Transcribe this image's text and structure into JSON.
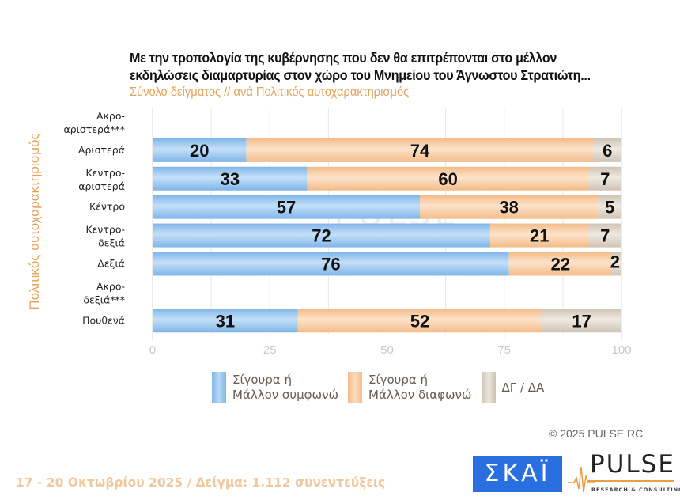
{
  "header": {
    "title_line1": "Με την τροπολογία της κυβέρνησης που δεν θα επιτρέπονται στο μέλλον",
    "title_line2": "εκδηλώσεις διαμαρτυρίας στον χώρο του Μνημείου του Άγνωστου Στρατιώτη...",
    "subtitle": "Σύνολο δείγματος // ανά Πολιτικός αυτοχαρακτηρισμός"
  },
  "chart_data": {
    "type": "bar",
    "orientation": "horizontal",
    "stacked": true,
    "title": "Με την τροπολογία της κυβέρνησης που δεν θα επιτρέπονται στο μέλλον εκδηλώσεις διαμαρτυρίας στον χώρο του Μνημείου του Άγνωστου Στρατιώτη...",
    "subtitle": "Σύνολο δείγματος // ανά Πολιτικός αυτοχαρακτηρισμός",
    "ylabel": "Πολιτικός αυτοχαρακτηρισμός",
    "xlabel": "",
    "xlim": [
      0,
      100
    ],
    "xticks": [
      0,
      25,
      50,
      75,
      100
    ],
    "grid": true,
    "legend_position": "bottom",
    "categories": [
      {
        "line1": "Ακρο-",
        "line2": "αριστερά***"
      },
      {
        "line1": "Αριστερά",
        "line2": ""
      },
      {
        "line1": "Κεντρο-",
        "line2": "αριστερά"
      },
      {
        "line1": "Κέντρο",
        "line2": ""
      },
      {
        "line1": "Κεντρο-",
        "line2": "δεξιά"
      },
      {
        "line1": "Δεξιά",
        "line2": ""
      },
      {
        "line1": "Ακρο-",
        "line2": "δεξιά***"
      },
      {
        "line1": "Πουθενά",
        "line2": ""
      }
    ],
    "series": [
      {
        "name": "Σίγουρα ή Μάλλον συμφωνώ",
        "color": "#8fc0ec",
        "values": [
          null,
          20,
          33,
          57,
          72,
          76,
          null,
          31
        ]
      },
      {
        "name": "Σίγουρα ή Μάλλον διαφωνώ",
        "color": "#f6c8a0",
        "values": [
          null,
          74,
          60,
          38,
          21,
          22,
          null,
          52
        ]
      },
      {
        "name": "ΔΓ / ΔΑ",
        "color": "#d9cfc3",
        "values": [
          null,
          6,
          7,
          5,
          7,
          2,
          null,
          17
        ]
      }
    ]
  },
  "legend": [
    {
      "label": "Σίγουρα ή\nΜάλλον συμφωνώ",
      "color": "#8fc0ec"
    },
    {
      "label": "Σίγουρα ή\nΜάλλον διαφωνώ",
      "color": "#f6c8a0"
    },
    {
      "label": "ΔΓ / ΔΑ",
      "color": "#d9cfc3"
    }
  ],
  "watermark": {
    "main": "PULSE",
    "sub": "RESEARCH & CONSULTING"
  },
  "copyright": "©  2025  PULSE RC",
  "footer": "17 - 20 Οκτωβρίου 2025  /  Δείγμα:  1.112 συνεντεύξεις",
  "logos": {
    "skai": "ΣΚΑΪ",
    "pulse": "PULSE",
    "pulse_sub": "RESEARCH & CONSULTING"
  }
}
